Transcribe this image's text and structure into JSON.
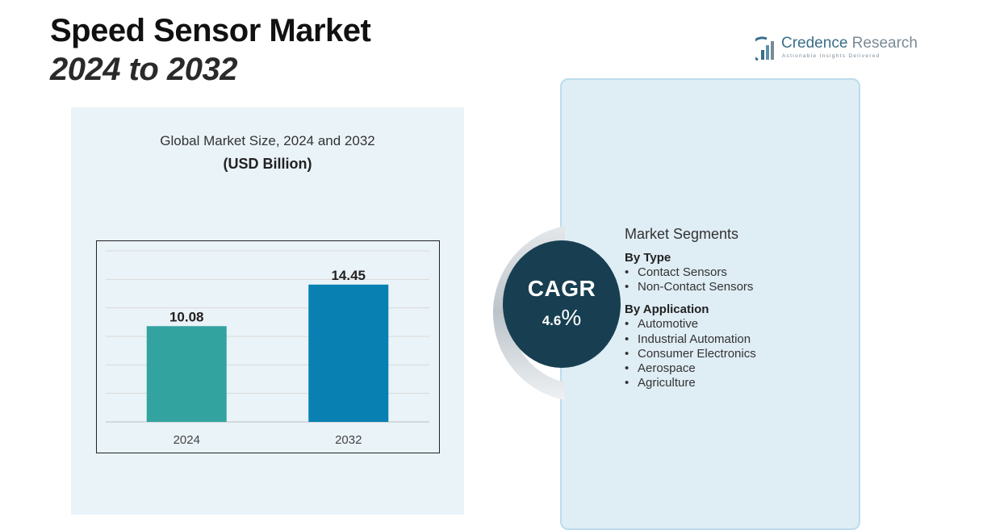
{
  "header": {
    "title_line1": "Speed Sensor Market",
    "title_line2": "2024 to 2032"
  },
  "logo": {
    "name_part1": "Credence",
    "name_part2": " Research",
    "tagline": "Actionable Insights Delivered",
    "icon": "bar-chart-logo-icon"
  },
  "chart_data": {
    "type": "bar",
    "title": "Global Market Size, 2024 and 2032",
    "subtitle": "(USD Billion)",
    "categories": [
      "2024",
      "2032"
    ],
    "values": [
      10.08,
      14.45
    ],
    "data_labels": [
      "10.08",
      "14.45"
    ],
    "ylim": [
      0,
      18
    ],
    "grid": true,
    "colors": [
      "#33a3a0",
      "#0880b2"
    ]
  },
  "cagr": {
    "label": "CAGR",
    "value": "4.6",
    "percent_sign": "%"
  },
  "segments": {
    "heading": "Market Segments",
    "groups": [
      {
        "title": "By Type",
        "items": [
          "Contact Sensors",
          "Non-Contact Sensors"
        ]
      },
      {
        "title": "By Application",
        "items": [
          "Automotive",
          "Industrial Automation",
          "Consumer Electronics",
          "Aerospace",
          "Agriculture"
        ]
      }
    ]
  },
  "colors": {
    "left_panel_bg": "#eaf3f8",
    "right_panel_bg": "#dfedf5",
    "cagr_circle": "#173f51"
  }
}
